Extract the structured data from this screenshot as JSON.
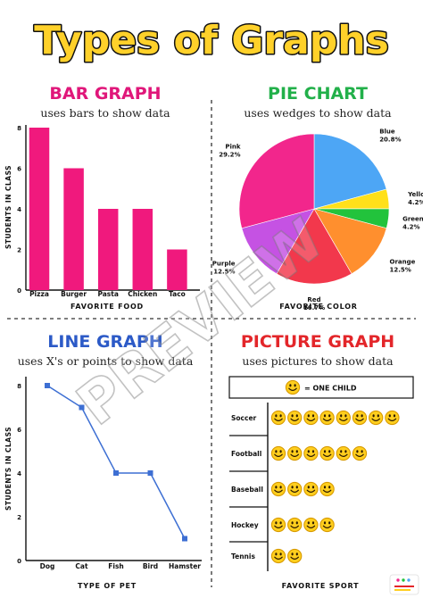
{
  "title": "Types of Graphs",
  "watermark": "PREVIEW",
  "colors": {
    "title_fill": "#FFD12A",
    "title_stroke": "#111111",
    "bar": "#F0197D",
    "bar_heading": "#E0177A",
    "pie_heading": "#22B04A",
    "line_heading": "#2C5AC7",
    "line": "#3D6FD3",
    "picture_heading": "#E3262A",
    "smiley": "#FFCE1E"
  },
  "panels": {
    "bar": {
      "heading": "BAR GRAPH",
      "subtitle": "uses bars to show data"
    },
    "pie": {
      "heading": "PIE CHART",
      "subtitle": "uses wedges to show data"
    },
    "line": {
      "heading": "LINE GRAPH",
      "subtitle": "uses X's or points to show data"
    },
    "picture": {
      "heading": "PICTURE GRAPH",
      "subtitle": "uses pictures to show data"
    }
  },
  "chart_data": [
    {
      "type": "bar",
      "title": "BAR GRAPH",
      "subtitle": "uses bars to show data",
      "categories": [
        "Pizza",
        "Burger",
        "Pasta",
        "Chicken",
        "Taco"
      ],
      "values": [
        8,
        6,
        4,
        4,
        2
      ],
      "xlabel": "FAVORITE FOOD",
      "ylabel": "STUDENTS IN CLASS",
      "ylim": [
        0,
        8
      ],
      "yticks": [
        0,
        2,
        4,
        6,
        8
      ],
      "grid": false
    },
    {
      "type": "pie",
      "title": "PIE CHART",
      "subtitle": "uses wedges to show data",
      "xlabel": "FAVORITE COLOR",
      "slices": [
        {
          "label": "Blue",
          "value": 20.8,
          "display": "20.8%",
          "color": "#4DA6F5"
        },
        {
          "label": "Yellow",
          "value": 4.2,
          "display": "4.2%",
          "color": "#FFE01A"
        },
        {
          "label": "Green",
          "value": 4.2,
          "display": "4.2%",
          "color": "#22C33C"
        },
        {
          "label": "Orange",
          "value": 12.5,
          "display": "12.5%",
          "color": "#FF8F2E"
        },
        {
          "label": "Red",
          "value": 16.7,
          "display": "16.7%",
          "color": "#F2384C"
        },
        {
          "label": "Purple",
          "value": 12.5,
          "display": "12.5%",
          "color": "#C552E3"
        },
        {
          "label": "Pink",
          "value": 29.2,
          "display": "29.2%",
          "color": "#F2268C"
        }
      ]
    },
    {
      "type": "line",
      "title": "LINE GRAPH",
      "subtitle": "uses X's or points to show data",
      "categories": [
        "Dog",
        "Cat",
        "Fish",
        "Bird",
        "Hamster"
      ],
      "values": [
        8,
        7,
        4,
        4,
        1
      ],
      "xlabel": "TYPE OF PET",
      "ylabel": "STUDENTS IN CLASS",
      "ylim": [
        0,
        8
      ],
      "yticks": [
        0,
        2,
        4,
        6,
        8
      ],
      "grid": false
    },
    {
      "type": "table",
      "title": "PICTURE GRAPH",
      "subtitle": "uses pictures to show data",
      "key": "= ONE CHILD",
      "categories": [
        "Soccer",
        "Football",
        "Baseball",
        "Hockey",
        "Tennis"
      ],
      "values": [
        8,
        6,
        4,
        4,
        2
      ],
      "xlabel": "FAVORITE SPORT"
    }
  ]
}
